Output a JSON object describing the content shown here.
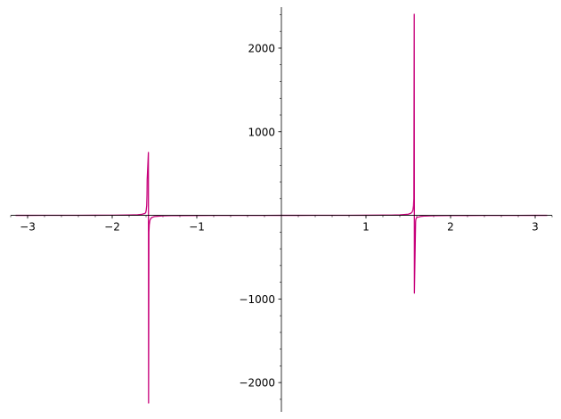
{
  "chart_data": {
    "type": "line",
    "title": "",
    "xlabel": "",
    "ylabel": "",
    "xlim": [
      -3.2,
      3.2
    ],
    "ylim": [
      -2350,
      2490
    ],
    "grid": false,
    "axes_style": "centered-at-origin",
    "series_color": "#c7007a",
    "x_major_ticks": [
      -3,
      -2,
      -1,
      1,
      2,
      3
    ],
    "x_major_tick_labels": [
      "−3",
      "−2",
      "−1",
      "1",
      "2",
      "3"
    ],
    "x_minor_step": 0.2,
    "y_major_ticks": [
      -2000,
      -1000,
      1000,
      2000
    ],
    "y_major_tick_labels": [
      "−2000",
      "−1000",
      "1000",
      "2000"
    ],
    "y_minor_step": 200,
    "series": [
      {
        "function": "tan(x)",
        "x_range": [
          -3.14159,
          3.14159
        ],
        "samples": 200,
        "points": [
          [
            -3.1416,
            0
          ],
          [
            -3.0,
            0.1425
          ],
          [
            -2.8,
            0.3555
          ],
          [
            -2.6,
            0.6016
          ],
          [
            -2.4,
            0.916
          ],
          [
            -2.2,
            1.3738
          ],
          [
            -2.0,
            2.185
          ],
          [
            -1.9,
            2.927
          ],
          [
            -1.8,
            4.286
          ],
          [
            -1.7,
            7.697
          ],
          [
            -1.65,
            12.6
          ],
          [
            -1.62,
            20.3
          ],
          [
            -1.605,
            30
          ],
          [
            -1.598,
            60
          ],
          [
            -1.592,
            120
          ],
          [
            -1.5885,
            250
          ],
          [
            -1.5865,
            430
          ],
          [
            -1.5721,
            752
          ],
          [
            -1.5701,
            -2244
          ],
          [
            -1.566,
            -200
          ],
          [
            -1.562,
            -115
          ],
          [
            -1.555,
            -62
          ],
          [
            -1.545,
            -39
          ],
          [
            -1.53,
            -24.4
          ],
          [
            -1.5,
            -14.1
          ],
          [
            -1.4,
            -5.8
          ],
          [
            -1.3,
            -3.6
          ],
          [
            -1.2,
            -2.57
          ],
          [
            -1.0,
            -1.557
          ],
          [
            -0.8,
            -1.03
          ],
          [
            -0.6,
            -0.684
          ],
          [
            -0.4,
            -0.423
          ],
          [
            -0.2,
            -0.203
          ],
          [
            0.0,
            0
          ],
          [
            0.2,
            0.203
          ],
          [
            0.4,
            0.423
          ],
          [
            0.6,
            0.684
          ],
          [
            0.8,
            1.03
          ],
          [
            1.0,
            1.557
          ],
          [
            1.2,
            2.57
          ],
          [
            1.3,
            3.6
          ],
          [
            1.4,
            5.8
          ],
          [
            1.5,
            14.1
          ],
          [
            1.53,
            24.4
          ],
          [
            1.545,
            39
          ],
          [
            1.555,
            62
          ],
          [
            1.562,
            115
          ],
          [
            1.566,
            200
          ],
          [
            1.5704,
            2405
          ],
          [
            1.5722,
            -930
          ],
          [
            1.5865,
            -80
          ],
          [
            1.5885,
            -55
          ],
          [
            1.592,
            -40
          ],
          [
            1.598,
            -30
          ],
          [
            1.605,
            -22
          ],
          [
            1.62,
            -20.3
          ],
          [
            1.65,
            -12.6
          ],
          [
            1.7,
            -7.697
          ],
          [
            1.8,
            -4.286
          ],
          [
            1.9,
            -2.927
          ],
          [
            2.0,
            -2.185
          ],
          [
            2.2,
            -1.3738
          ],
          [
            2.4,
            -0.916
          ],
          [
            2.6,
            -0.6016
          ],
          [
            2.8,
            -0.3555
          ],
          [
            3.0,
            -0.1425
          ],
          [
            3.1416,
            0
          ]
        ]
      }
    ]
  }
}
